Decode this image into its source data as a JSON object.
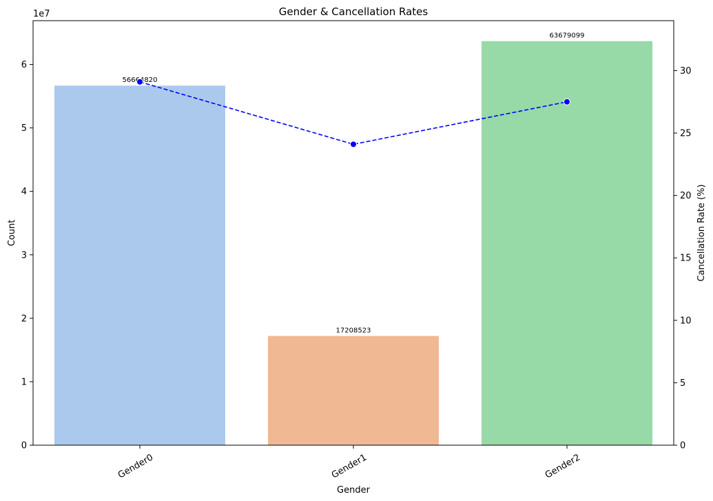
{
  "chart_data": {
    "type": "bar",
    "title": "Gender & Cancellation Rates",
    "xlabel": "Gender",
    "ylabel": "Count",
    "y2label": "Cancellation Rate (%)",
    "y_offset_text": "1e7",
    "categories": [
      "Gender0",
      "Gender1",
      "Gender2"
    ],
    "bar_series": {
      "values": [
        56664820,
        17208523,
        63679099
      ],
      "labels": [
        "56664820",
        "17208523",
        "63679099"
      ],
      "colors": [
        "#abc9ed",
        "#f0b893",
        "#98d9a8"
      ]
    },
    "line_series": {
      "values": [
        29.1,
        24.1,
        27.5
      ],
      "color": "#0000ff",
      "style": "dashed",
      "marker": "circle"
    },
    "ylim": [
      0,
      66900000
    ],
    "y_ticks": [
      0,
      1,
      2,
      3,
      4,
      5,
      6
    ],
    "y_tick_scale": 10000000,
    "y2lim": [
      0,
      34
    ],
    "y2_ticks": [
      0,
      5,
      10,
      15,
      20,
      25,
      30
    ],
    "grid": false,
    "legend": "none",
    "x_tick_rotation": 30
  }
}
